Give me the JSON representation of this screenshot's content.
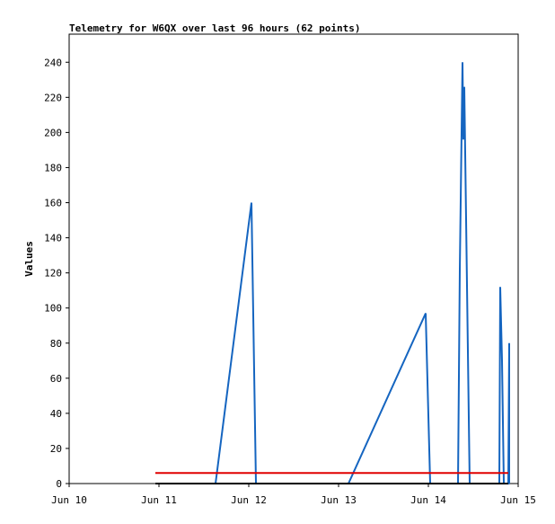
{
  "chart_data": {
    "type": "line",
    "title": "Telemetry for W6QX over last 96 hours (62 points)",
    "y_label": "Values",
    "xlim": [
      10,
      15
    ],
    "xticks": [
      {
        "value": 10,
        "label": "Jun 10"
      },
      {
        "value": 11,
        "label": "Jun 11"
      },
      {
        "value": 12,
        "label": "Jun 12"
      },
      {
        "value": 13,
        "label": "Jun 13"
      },
      {
        "value": 14,
        "label": "Jun 14"
      },
      {
        "value": 15,
        "label": "Jun 15"
      }
    ],
    "ylim": [
      0,
      256
    ],
    "yticks": [
      0,
      20,
      40,
      60,
      80,
      100,
      120,
      140,
      160,
      180,
      200,
      220,
      240
    ],
    "series": [
      {
        "color": "#1565c0",
        "x": [
          11.63,
          12.03,
          12.08,
          13.11,
          13.97,
          14.02,
          14.33,
          14.35,
          14.38,
          14.39,
          14.4,
          14.46,
          14.79,
          14.8,
          14.82,
          14.84,
          14.89,
          14.9,
          14.9
        ],
        "values": [
          0,
          160,
          0,
          0,
          97,
          0,
          0,
          122,
          240,
          196,
          226,
          0,
          0,
          112,
          70,
          0,
          0,
          80,
          0
        ]
      },
      {
        "color": "#e00000",
        "x": [
          10.96,
          14.89
        ],
        "values": [
          6,
          6
        ]
      },
      {
        "color": "#000000",
        "x": [
          10.96,
          14.89
        ],
        "values": [
          0,
          0
        ]
      }
    ]
  }
}
